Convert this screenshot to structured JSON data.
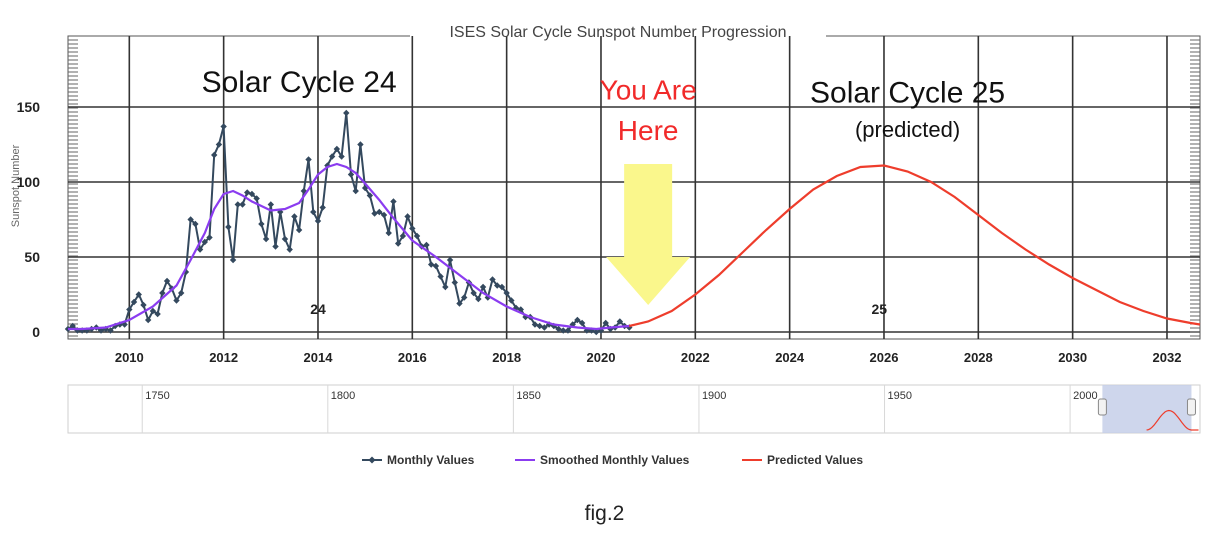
{
  "figure": {
    "caption": "fig.2"
  },
  "chart_data": {
    "type": "line",
    "title": "ISES Solar Cycle Sunspot Number Progression",
    "xlabel": "",
    "ylabel": "Sunspot Number",
    "xlim": [
      2008.7,
      2032.7
    ],
    "ylim": [
      0,
      200
    ],
    "xticks": [
      2010,
      2012,
      2014,
      2016,
      2018,
      2020,
      2022,
      2024,
      2026,
      2028,
      2030,
      2032
    ],
    "yticks": [
      0,
      50,
      100,
      150
    ],
    "grid": true,
    "legend_position": "bottom",
    "annotations": [
      {
        "text": "Solar Cycle 24",
        "x": 2013.6,
        "y": 160
      },
      {
        "text": "You Are",
        "x": 2021.0,
        "y": 155
      },
      {
        "text": "Here",
        "x": 2021.0,
        "y": 128
      },
      {
        "text": "Solar Cycle 25",
        "x": 2026.5,
        "y": 153
      },
      {
        "text": "(predicted)",
        "x": 2026.5,
        "y": 130
      },
      {
        "text": "24",
        "x": 2014.0,
        "y": 12
      },
      {
        "text": "25",
        "x": 2025.9,
        "y": 12
      }
    ],
    "arrow": {
      "color": "#faf78c",
      "from_x": 2021.0,
      "y_top": 112,
      "y_bottom": 18
    },
    "series": [
      {
        "name": "Monthly Values",
        "color": "#34495e",
        "marker": "diamond",
        "x": [
          2008.7,
          2008.8,
          2008.9,
          2009.0,
          2009.1,
          2009.2,
          2009.3,
          2009.4,
          2009.5,
          2009.6,
          2009.7,
          2009.8,
          2009.9,
          2010.0,
          2010.1,
          2010.2,
          2010.3,
          2010.4,
          2010.5,
          2010.6,
          2010.7,
          2010.8,
          2010.9,
          2011.0,
          2011.1,
          2011.2,
          2011.3,
          2011.4,
          2011.5,
          2011.6,
          2011.7,
          2011.8,
          2011.9,
          2012.0,
          2012.1,
          2012.2,
          2012.3,
          2012.4,
          2012.5,
          2012.6,
          2012.7,
          2012.8,
          2012.9,
          2013.0,
          2013.1,
          2013.2,
          2013.3,
          2013.4,
          2013.5,
          2013.6,
          2013.7,
          2013.8,
          2013.9,
          2014.0,
          2014.1,
          2014.2,
          2014.3,
          2014.4,
          2014.5,
          2014.6,
          2014.7,
          2014.8,
          2014.9,
          2015.0,
          2015.1,
          2015.2,
          2015.3,
          2015.4,
          2015.5,
          2015.6,
          2015.7,
          2015.8,
          2015.9,
          2016.0,
          2016.1,
          2016.2,
          2016.3,
          2016.4,
          2016.5,
          2016.6,
          2016.7,
          2016.8,
          2016.9,
          2017.0,
          2017.1,
          2017.2,
          2017.3,
          2017.4,
          2017.5,
          2017.6,
          2017.7,
          2017.8,
          2017.9,
          2018.0,
          2018.1,
          2018.2,
          2018.3,
          2018.4,
          2018.5,
          2018.6,
          2018.7,
          2018.8,
          2018.9,
          2019.0,
          2019.1,
          2019.2,
          2019.3,
          2019.4,
          2019.5,
          2019.6,
          2019.7,
          2019.8,
          2019.9,
          2020.0,
          2020.1,
          2020.2,
          2020.3,
          2020.4,
          2020.5,
          2020.6
        ],
        "y": [
          2,
          4,
          1,
          1,
          1,
          2,
          3,
          1,
          2,
          1,
          4,
          5,
          5,
          15,
          20,
          25,
          18,
          8,
          14,
          12,
          26,
          34,
          29,
          21,
          26,
          40,
          75,
          72,
          55,
          60,
          63,
          118,
          125,
          137,
          70,
          48,
          85,
          85,
          93,
          92,
          89,
          72,
          62,
          85,
          57,
          80,
          62,
          55,
          77,
          68,
          94,
          115,
          80,
          74,
          83,
          111,
          117,
          122,
          117,
          146,
          105,
          94,
          125,
          96,
          91,
          79,
          80,
          78,
          66,
          87,
          59,
          64,
          77,
          69,
          64,
          57,
          58,
          45,
          44,
          37,
          30,
          48,
          33,
          19,
          23,
          33,
          26,
          22,
          30,
          23,
          35,
          31,
          30,
          26,
          21,
          16,
          15,
          10,
          10,
          5,
          4,
          3,
          5,
          4,
          2,
          1,
          1,
          5,
          8,
          6,
          1,
          1,
          0,
          1,
          6,
          2,
          3,
          7,
          4,
          3
        ]
      },
      {
        "name": "Smoothed Monthly Values",
        "color": "#8b3cf0",
        "x": [
          2008.7,
          2009.0,
          2009.5,
          2010.0,
          2010.5,
          2011.0,
          2011.3,
          2011.6,
          2011.8,
          2012.0,
          2012.2,
          2012.4,
          2012.6,
          2012.8,
          2013.0,
          2013.3,
          2013.6,
          2013.8,
          2014.0,
          2014.2,
          2014.4,
          2014.6,
          2014.8,
          2015.0,
          2015.3,
          2015.6,
          2016.0,
          2016.5,
          2017.0,
          2017.5,
          2018.0,
          2018.5,
          2019.0,
          2019.5,
          2019.9,
          2020.2,
          2020.6
        ],
        "y": [
          2,
          2,
          3,
          8,
          17,
          31,
          48,
          66,
          82,
          92,
          94,
          91,
          87,
          84,
          81,
          82,
          86,
          95,
          105,
          110,
          112,
          110,
          106,
          99,
          88,
          76,
          61,
          50,
          38,
          26,
          17,
          10,
          5,
          3,
          2,
          3,
          4
        ]
      },
      {
        "name": "Predicted Values",
        "color": "#ee3d2c",
        "x": [
          2020.6,
          2021.0,
          2021.5,
          2022.0,
          2022.5,
          2023.0,
          2023.5,
          2024.0,
          2024.5,
          2025.0,
          2025.5,
          2026.0,
          2026.5,
          2027.0,
          2027.5,
          2028.0,
          2028.5,
          2029.0,
          2029.5,
          2030.0,
          2030.5,
          2031.0,
          2031.5,
          2032.0,
          2032.5,
          2032.7
        ],
        "y": [
          4,
          7,
          14,
          25,
          38,
          53,
          68,
          82,
          95,
          104,
          110,
          111,
          107,
          100,
          90,
          78,
          66,
          55,
          45,
          36,
          28,
          20,
          14,
          9,
          6,
          5
        ]
      }
    ],
    "navigator": {
      "x_range": [
        1730,
        2035
      ],
      "x_tick_labels": [
        1750,
        1800,
        1850,
        1900,
        1950,
        2000
      ],
      "selected_range": [
        2008.7,
        2032.7
      ],
      "history_color": "#2b2b2b",
      "prediction_color": "#ee3d2c",
      "selection_fill": "#c5cfe9"
    }
  }
}
